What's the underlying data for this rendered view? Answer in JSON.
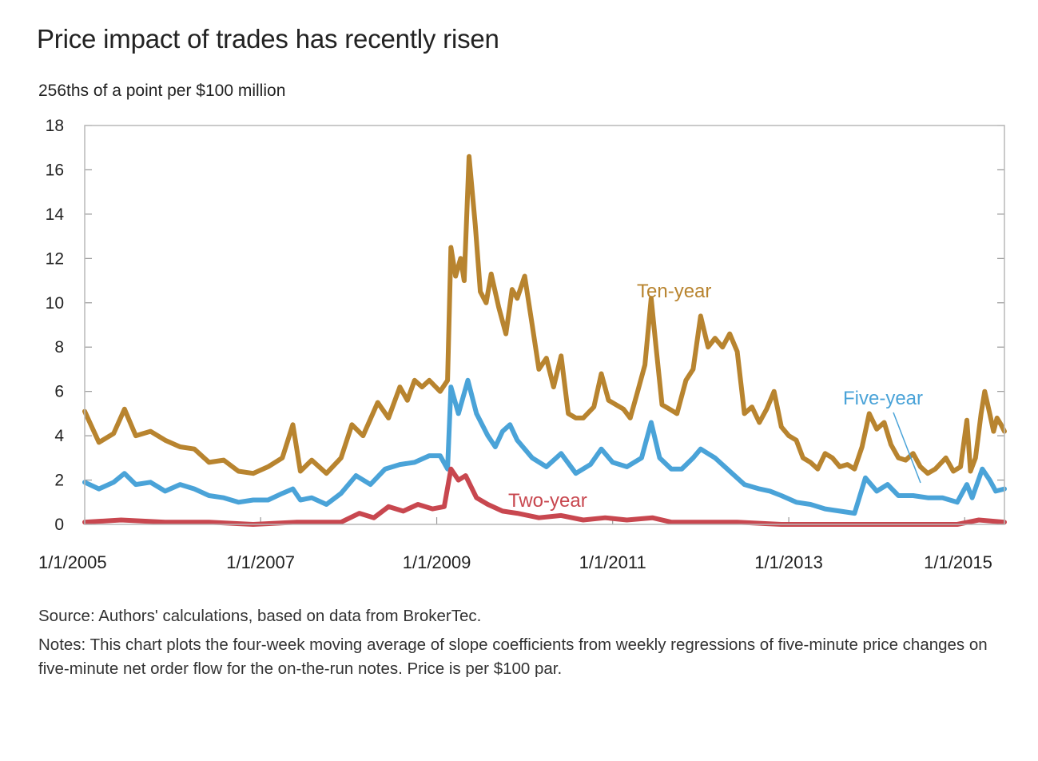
{
  "chart_data": {
    "type": "line",
    "title": "Price impact of trades has recently risen",
    "ylabel": "256ths of a point per $100 million",
    "xlabel": "",
    "xlim": [
      "2005-01-01",
      "2015-06-15"
    ],
    "ylim": [
      0,
      18
    ],
    "y_ticks": [
      0,
      2,
      4,
      6,
      8,
      10,
      12,
      14,
      16,
      18
    ],
    "x_ticks": [
      "2005-01-01",
      "2007-01-01",
      "2009-01-01",
      "2011-01-01",
      "2013-01-01",
      "2015-01-01"
    ],
    "x_tick_labels": [
      "1/1/2005",
      "1/1/2007",
      "1/1/2009",
      "1/1/2011",
      "1/1/2013",
      "1/1/2015"
    ],
    "grid": false,
    "series": [
      {
        "name": "Ten-year",
        "color": "#b8842f",
        "points": [
          [
            "2005-01-01",
            5.1
          ],
          [
            "2005-03-01",
            3.7
          ],
          [
            "2005-05-01",
            4.1
          ],
          [
            "2005-06-15",
            5.2
          ],
          [
            "2005-08-01",
            4.0
          ],
          [
            "2005-10-01",
            4.2
          ],
          [
            "2005-12-01",
            3.8
          ],
          [
            "2006-02-01",
            3.5
          ],
          [
            "2006-04-01",
            3.4
          ],
          [
            "2006-06-01",
            2.8
          ],
          [
            "2006-08-01",
            2.9
          ],
          [
            "2006-10-01",
            2.4
          ],
          [
            "2006-12-01",
            2.3
          ],
          [
            "2007-02-01",
            2.6
          ],
          [
            "2007-04-01",
            3.0
          ],
          [
            "2007-05-15",
            4.5
          ],
          [
            "2007-06-15",
            2.4
          ],
          [
            "2007-08-01",
            2.9
          ],
          [
            "2007-10-01",
            2.3
          ],
          [
            "2007-12-01",
            3.0
          ],
          [
            "2008-01-15",
            4.5
          ],
          [
            "2008-03-01",
            4.0
          ],
          [
            "2008-05-01",
            5.5
          ],
          [
            "2008-06-15",
            4.8
          ],
          [
            "2008-08-01",
            6.2
          ],
          [
            "2008-09-01",
            5.6
          ],
          [
            "2008-10-01",
            6.5
          ],
          [
            "2008-11-01",
            6.2
          ],
          [
            "2008-12-01",
            6.5
          ],
          [
            "2009-01-15",
            6.0
          ],
          [
            "2009-02-15",
            6.5
          ],
          [
            "2009-03-01",
            12.5
          ],
          [
            "2009-03-20",
            11.2
          ],
          [
            "2009-04-10",
            12.0
          ],
          [
            "2009-04-25",
            11.0
          ],
          [
            "2009-05-15",
            16.6
          ],
          [
            "2009-06-10",
            13.5
          ],
          [
            "2009-07-01",
            10.5
          ],
          [
            "2009-07-25",
            10.0
          ],
          [
            "2009-08-15",
            11.3
          ],
          [
            "2009-09-15",
            9.8
          ],
          [
            "2009-10-15",
            8.6
          ],
          [
            "2009-11-10",
            10.6
          ],
          [
            "2009-12-01",
            10.2
          ],
          [
            "2010-01-01",
            11.2
          ],
          [
            "2010-02-01",
            9.0
          ],
          [
            "2010-03-01",
            7.0
          ],
          [
            "2010-04-01",
            7.5
          ],
          [
            "2010-05-01",
            6.2
          ],
          [
            "2010-06-01",
            7.6
          ],
          [
            "2010-07-01",
            5.0
          ],
          [
            "2010-08-01",
            4.8
          ],
          [
            "2010-09-01",
            4.8
          ],
          [
            "2010-10-15",
            5.3
          ],
          [
            "2010-11-15",
            6.8
          ],
          [
            "2010-12-15",
            5.6
          ],
          [
            "2011-01-15",
            5.4
          ],
          [
            "2011-02-15",
            5.2
          ],
          [
            "2011-03-15",
            4.8
          ],
          [
            "2011-04-15",
            6.0
          ],
          [
            "2011-05-15",
            7.2
          ],
          [
            "2011-06-10",
            10.2
          ],
          [
            "2011-06-30",
            8.0
          ],
          [
            "2011-07-25",
            5.4
          ],
          [
            "2011-08-25",
            5.2
          ],
          [
            "2011-09-25",
            5.0
          ],
          [
            "2011-11-01",
            6.5
          ],
          [
            "2011-12-01",
            7.0
          ],
          [
            "2012-01-01",
            9.4
          ],
          [
            "2012-02-01",
            8.0
          ],
          [
            "2012-03-01",
            8.4
          ],
          [
            "2012-04-01",
            8.0
          ],
          [
            "2012-05-01",
            8.6
          ],
          [
            "2012-06-01",
            7.8
          ],
          [
            "2012-07-01",
            5.0
          ],
          [
            "2012-08-01",
            5.3
          ],
          [
            "2012-09-01",
            4.6
          ],
          [
            "2012-10-01",
            5.2
          ],
          [
            "2012-11-01",
            6.0
          ],
          [
            "2012-12-01",
            4.4
          ],
          [
            "2013-01-01",
            4.0
          ],
          [
            "2013-02-01",
            3.8
          ],
          [
            "2013-03-01",
            3.0
          ],
          [
            "2013-04-01",
            2.8
          ],
          [
            "2013-05-01",
            2.5
          ],
          [
            "2013-06-01",
            3.2
          ],
          [
            "2013-07-01",
            3.0
          ],
          [
            "2013-08-01",
            2.6
          ],
          [
            "2013-09-01",
            2.7
          ],
          [
            "2013-10-01",
            2.5
          ],
          [
            "2013-11-01",
            3.5
          ],
          [
            "2013-12-01",
            5.0
          ],
          [
            "2014-01-01",
            4.3
          ],
          [
            "2014-02-01",
            4.6
          ],
          [
            "2014-03-01",
            3.6
          ],
          [
            "2014-04-01",
            3.0
          ],
          [
            "2014-05-01",
            2.9
          ],
          [
            "2014-06-01",
            3.2
          ],
          [
            "2014-07-01",
            2.6
          ],
          [
            "2014-08-01",
            2.3
          ],
          [
            "2014-09-01",
            2.5
          ],
          [
            "2014-10-15",
            3.0
          ],
          [
            "2014-11-15",
            2.4
          ],
          [
            "2014-12-15",
            2.6
          ],
          [
            "2015-01-10",
            4.7
          ],
          [
            "2015-01-25",
            2.4
          ],
          [
            "2015-02-15",
            3.0
          ],
          [
            "2015-03-10",
            5.0
          ],
          [
            "2015-03-25",
            6.0
          ],
          [
            "2015-04-15",
            5.0
          ],
          [
            "2015-05-01",
            4.2
          ],
          [
            "2015-05-15",
            4.8
          ],
          [
            "2015-06-01",
            4.5
          ],
          [
            "2015-06-15",
            4.2
          ]
        ]
      },
      {
        "name": "Five-year",
        "color": "#4aa3d8",
        "points": [
          [
            "2005-01-01",
            1.9
          ],
          [
            "2005-03-01",
            1.6
          ],
          [
            "2005-05-01",
            1.9
          ],
          [
            "2005-06-15",
            2.3
          ],
          [
            "2005-08-01",
            1.8
          ],
          [
            "2005-10-01",
            1.9
          ],
          [
            "2005-12-01",
            1.5
          ],
          [
            "2006-02-01",
            1.8
          ],
          [
            "2006-04-01",
            1.6
          ],
          [
            "2006-06-01",
            1.3
          ],
          [
            "2006-08-01",
            1.2
          ],
          [
            "2006-10-01",
            1.0
          ],
          [
            "2006-12-01",
            1.1
          ],
          [
            "2007-02-01",
            1.1
          ],
          [
            "2007-04-01",
            1.4
          ],
          [
            "2007-05-15",
            1.6
          ],
          [
            "2007-06-15",
            1.1
          ],
          [
            "2007-08-01",
            1.2
          ],
          [
            "2007-10-01",
            0.9
          ],
          [
            "2007-12-01",
            1.4
          ],
          [
            "2008-02-01",
            2.2
          ],
          [
            "2008-04-01",
            1.8
          ],
          [
            "2008-06-01",
            2.5
          ],
          [
            "2008-08-01",
            2.7
          ],
          [
            "2008-10-01",
            2.8
          ],
          [
            "2008-12-01",
            3.1
          ],
          [
            "2009-01-15",
            3.1
          ],
          [
            "2009-02-15",
            2.5
          ],
          [
            "2009-03-01",
            6.2
          ],
          [
            "2009-04-01",
            5.0
          ],
          [
            "2009-05-10",
            6.5
          ],
          [
            "2009-06-15",
            5.0
          ],
          [
            "2009-08-01",
            4.0
          ],
          [
            "2009-09-01",
            3.5
          ],
          [
            "2009-10-01",
            4.2
          ],
          [
            "2009-11-01",
            4.5
          ],
          [
            "2009-12-01",
            3.8
          ],
          [
            "2010-02-01",
            3.0
          ],
          [
            "2010-04-01",
            2.6
          ],
          [
            "2010-06-01",
            3.2
          ],
          [
            "2010-08-01",
            2.3
          ],
          [
            "2010-10-01",
            2.7
          ],
          [
            "2010-11-15",
            3.4
          ],
          [
            "2011-01-01",
            2.8
          ],
          [
            "2011-03-01",
            2.6
          ],
          [
            "2011-05-01",
            3.0
          ],
          [
            "2011-06-10",
            4.6
          ],
          [
            "2011-07-15",
            3.0
          ],
          [
            "2011-09-01",
            2.5
          ],
          [
            "2011-10-15",
            2.5
          ],
          [
            "2011-12-01",
            3.0
          ],
          [
            "2012-01-01",
            3.4
          ],
          [
            "2012-03-01",
            3.0
          ],
          [
            "2012-05-01",
            2.4
          ],
          [
            "2012-07-01",
            1.8
          ],
          [
            "2012-09-01",
            1.6
          ],
          [
            "2012-10-15",
            1.5
          ],
          [
            "2012-12-01",
            1.3
          ],
          [
            "2013-02-01",
            1.0
          ],
          [
            "2013-04-01",
            0.9
          ],
          [
            "2013-06-01",
            0.7
          ],
          [
            "2013-08-01",
            0.6
          ],
          [
            "2013-10-01",
            0.5
          ],
          [
            "2013-11-15",
            2.1
          ],
          [
            "2014-01-01",
            1.5
          ],
          [
            "2014-02-15",
            1.8
          ],
          [
            "2014-04-01",
            1.3
          ],
          [
            "2014-06-01",
            1.3
          ],
          [
            "2014-08-01",
            1.2
          ],
          [
            "2014-10-01",
            1.2
          ],
          [
            "2014-12-01",
            1.0
          ],
          [
            "2015-01-10",
            1.8
          ],
          [
            "2015-02-01",
            1.2
          ],
          [
            "2015-03-15",
            2.5
          ],
          [
            "2015-04-15",
            2.0
          ],
          [
            "2015-05-10",
            1.5
          ],
          [
            "2015-06-15",
            1.6
          ]
        ]
      },
      {
        "name": "Two-year",
        "color": "#c8474f",
        "points": [
          [
            "2005-01-01",
            0.1
          ],
          [
            "2005-06-01",
            0.2
          ],
          [
            "2005-12-01",
            0.1
          ],
          [
            "2006-06-01",
            0.1
          ],
          [
            "2006-12-01",
            0.0
          ],
          [
            "2007-06-01",
            0.1
          ],
          [
            "2007-12-01",
            0.1
          ],
          [
            "2008-02-15",
            0.5
          ],
          [
            "2008-04-15",
            0.3
          ],
          [
            "2008-06-15",
            0.8
          ],
          [
            "2008-08-15",
            0.6
          ],
          [
            "2008-10-15",
            0.9
          ],
          [
            "2008-12-15",
            0.7
          ],
          [
            "2009-02-01",
            0.8
          ],
          [
            "2009-03-01",
            2.5
          ],
          [
            "2009-04-01",
            2.0
          ],
          [
            "2009-05-01",
            2.2
          ],
          [
            "2009-06-15",
            1.2
          ],
          [
            "2009-08-01",
            0.9
          ],
          [
            "2009-10-01",
            0.6
          ],
          [
            "2009-12-01",
            0.5
          ],
          [
            "2010-03-01",
            0.3
          ],
          [
            "2010-06-01",
            0.4
          ],
          [
            "2010-09-01",
            0.2
          ],
          [
            "2010-12-01",
            0.3
          ],
          [
            "2011-03-01",
            0.2
          ],
          [
            "2011-06-15",
            0.3
          ],
          [
            "2011-09-01",
            0.1
          ],
          [
            "2011-12-01",
            0.1
          ],
          [
            "2012-06-01",
            0.1
          ],
          [
            "2012-12-01",
            0.0
          ],
          [
            "2013-06-01",
            0.0
          ],
          [
            "2013-12-01",
            0.0
          ],
          [
            "2014-06-01",
            0.0
          ],
          [
            "2014-12-01",
            0.0
          ],
          [
            "2015-03-01",
            0.2
          ],
          [
            "2015-06-15",
            0.1
          ]
        ]
      }
    ],
    "annotations": [
      {
        "text": "Ten-year",
        "series": "Ten-year"
      },
      {
        "text": "Five-year",
        "series": "Five-year"
      },
      {
        "text": "Two-year",
        "series": "Two-year"
      }
    ],
    "source": "Source: Authors' calculations, based on data from BrokerTec.",
    "notes": "Notes: This chart plots the four-week moving average of slope coefficients from weekly regressions of five-minute price changes on five-minute net order flow for the on-the-run notes. Price is per $100 par."
  }
}
